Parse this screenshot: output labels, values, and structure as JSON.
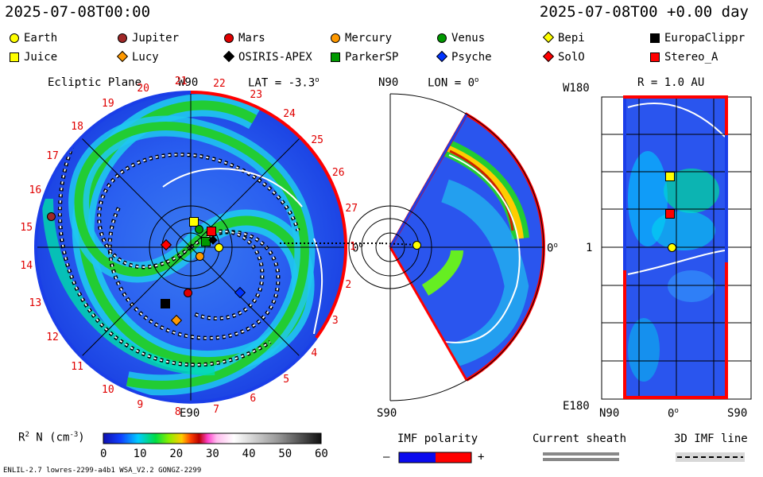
{
  "header": {
    "date_left": "2025-07-08T00:00",
    "date_right": "2025-07-08T00 +0.00 day"
  },
  "legend": [
    {
      "label": "Earth",
      "shape": "circle",
      "color": "#ffff00"
    },
    {
      "label": "Jupiter",
      "shape": "circle",
      "color": "#a02828"
    },
    {
      "label": "Mars",
      "shape": "circle",
      "color": "#e00000"
    },
    {
      "label": "Mercury",
      "shape": "circle",
      "color": "#ff9900"
    },
    {
      "label": "Venus",
      "shape": "circle",
      "color": "#009900"
    },
    {
      "label": "Bepi",
      "shape": "diamond",
      "color": "#ffff00"
    },
    {
      "label": "EuropaClippr",
      "shape": "square",
      "color": "#000000"
    },
    {
      "label": "Juice",
      "shape": "square",
      "color": "#ffff00"
    },
    {
      "label": "Lucy",
      "shape": "diamond",
      "color": "#ff9900"
    },
    {
      "label": "OSIRIS-APEX",
      "shape": "diamond",
      "color": "#000000"
    },
    {
      "label": "ParkerSP",
      "shape": "square",
      "color": "#009900"
    },
    {
      "label": "Psyche",
      "shape": "diamond",
      "color": "#0033ff"
    },
    {
      "label": "SolO",
      "shape": "diamond",
      "color": "#ff0000"
    },
    {
      "label": "Stereo_A",
      "shape": "square",
      "color": "#ff0000"
    }
  ],
  "ecliptic": {
    "title": "Ecliptic Plane",
    "top_label": "W90",
    "lat_label": "LAT = -3.3",
    "bottom_label": "E90",
    "right_label": "0",
    "left_label": "14",
    "carrington_ticks": [
      "13",
      "14",
      "15",
      "16",
      "17",
      "18",
      "19",
      "20",
      "21",
      "22",
      "23",
      "24",
      "25",
      "26",
      "27",
      "1",
      "2",
      "3",
      "4",
      "5",
      "6",
      "7",
      "8",
      "9",
      "10",
      "11",
      "12"
    ]
  },
  "meridional": {
    "top_label": "N90",
    "lon_label": "LON = 0",
    "bottom_label": "S90",
    "right_label": "0"
  },
  "surface": {
    "left_top": "W180",
    "left_mid": "1",
    "left_bottom": "E180",
    "title": "R = 1.0 AU",
    "x_left": "N90",
    "x_mid": "0",
    "x_right": "S90"
  },
  "colorbar": {
    "label": "R  N (cm",
    "label_exp": "2",
    "label_exp2": "-3",
    "ticks": [
      "0",
      "10",
      "20",
      "30",
      "40",
      "50",
      "60"
    ]
  },
  "imf": {
    "title": "IMF polarity",
    "minus": "–",
    "plus": "+"
  },
  "sheath": {
    "title": "Current sheath"
  },
  "imf3d": {
    "title": "3D IMF line"
  },
  "footer": {
    "left": "ENLIL-2.7 lowres-2299-a4b1 WSA_V2.2 GONGZ-2299"
  },
  "colors": {
    "blue": "#2255ee",
    "green": "#22cc33",
    "cyan": "#00ddff",
    "red": "#ff0000",
    "bg_blue": "#1a3ee8"
  }
}
